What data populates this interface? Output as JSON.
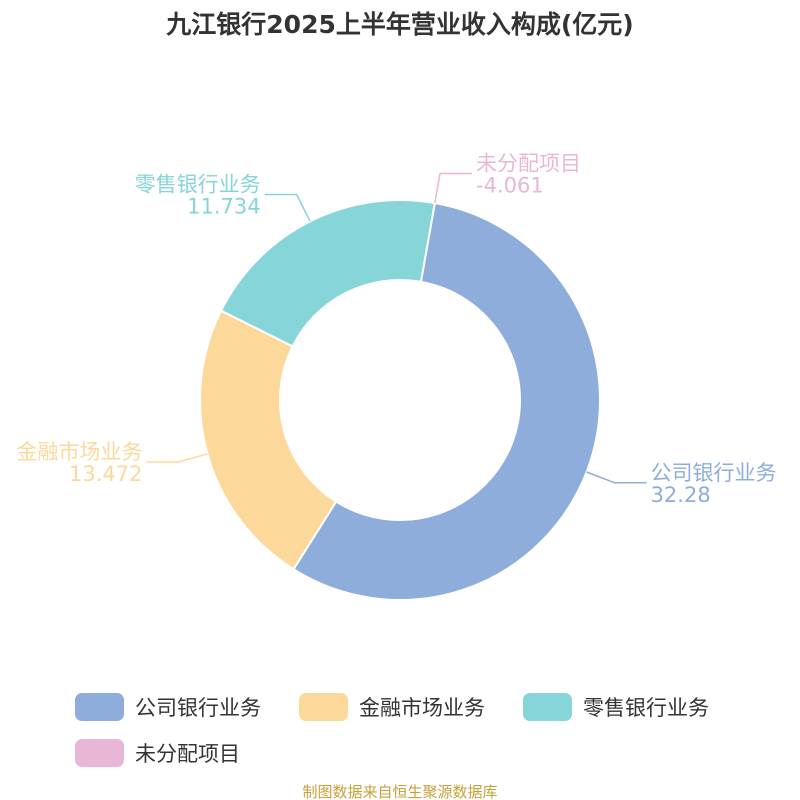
{
  "chart_data": {
    "type": "pie",
    "title": "九江银行2025上半年营业收入构成(亿元)",
    "donut": true,
    "slices": [
      {
        "label": "公司银行业务",
        "value": 32.28,
        "value_text": "32.28",
        "color": "#8eaddb"
      },
      {
        "label": "金融市场业务",
        "value": 13.472,
        "value_text": "13.472",
        "color": "#fdd89b"
      },
      {
        "label": "零售银行业务",
        "value": 11.734,
        "value_text": "11.734",
        "color": "#86d5d8"
      },
      {
        "label": "未分配项目",
        "value": -4.061,
        "value_text": "-4.061",
        "color": "#e8b6d6"
      }
    ],
    "legend": {
      "placement": "bottom",
      "entries": [
        "公司银行业务",
        "金融市场业务",
        "零售银行业务",
        "未分配项目"
      ]
    }
  },
  "source": {
    "text": "制图数据来自恒生聚源数据库",
    "color": "#c8a038"
  }
}
